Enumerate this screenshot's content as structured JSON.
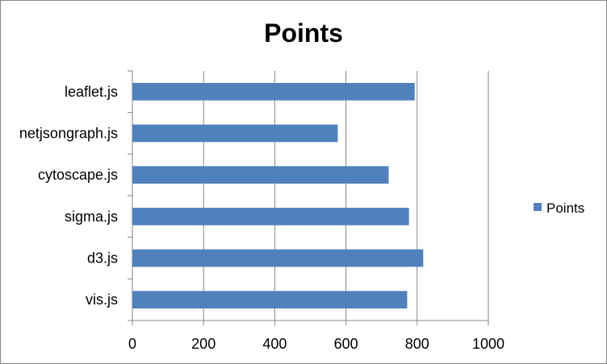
{
  "chart_data": {
    "type": "bar",
    "orientation": "horizontal",
    "title": "Points",
    "categories": [
      "vis.js",
      "d3.js",
      "sigma.js",
      "cytoscape.js",
      "netjsongraph.js",
      "leaflet.js"
    ],
    "series": [
      {
        "name": "Points",
        "values": [
          772,
          817,
          777,
          720,
          577,
          793
        ],
        "color": "#4F81BD"
      }
    ],
    "xlim": [
      0,
      1000
    ],
    "xticks": [
      "0",
      "200",
      "400",
      "600",
      "800",
      "1000"
    ],
    "grid": true,
    "legend_position": "right",
    "colors": {
      "bar": "#4F81BD",
      "grid": "#868686",
      "border": "#868686"
    }
  }
}
